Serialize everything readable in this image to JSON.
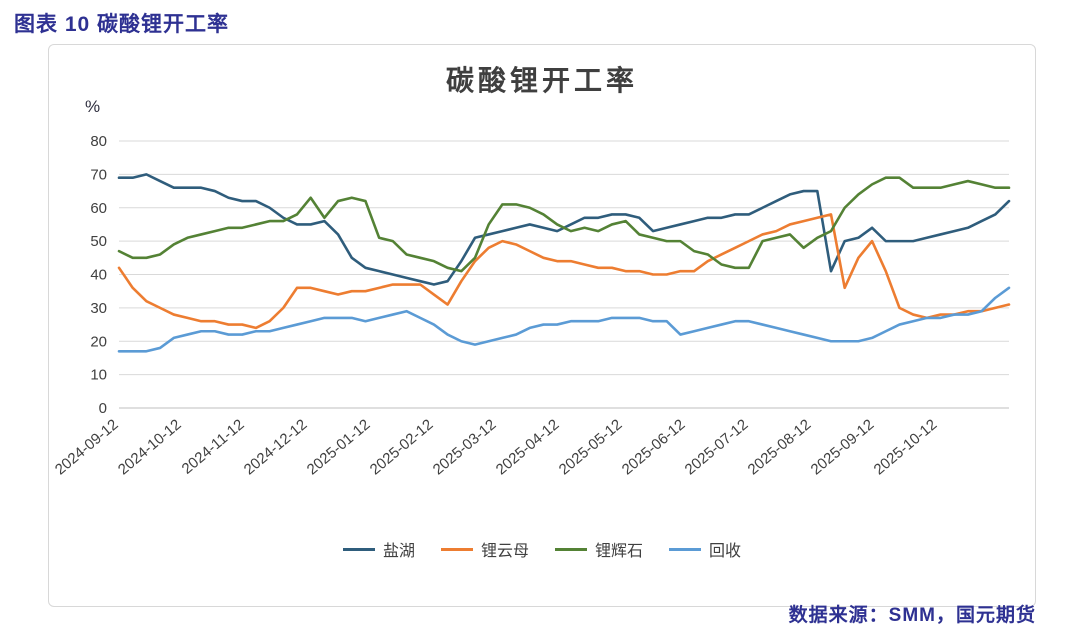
{
  "header": {
    "title": "图表 10 碳酸锂开工率"
  },
  "footer": {
    "source": "数据来源：SMM，国元期货"
  },
  "colors": {
    "accent_blue": "#2E3192",
    "grid": "#D9D9D9",
    "axis": "#BFBFBF",
    "tick_text": "#404040"
  },
  "chart_data": {
    "type": "line",
    "title": "碳酸锂开工率",
    "ylabel": "%",
    "xlabel": "",
    "ylim": [
      0,
      80
    ],
    "ytick_step": 10,
    "grid": "horizontal",
    "legend_position": "bottom",
    "x_tick_labels": [
      "2024-09-12",
      "2024-10-12",
      "2024-11-12",
      "2024-12-12",
      "2025-01-12",
      "2025-02-12",
      "2025-03-12",
      "2025-04-12",
      "2025-05-12",
      "2025-06-12",
      "2025-07-12",
      "2025-08-12",
      "2025-09-12",
      "2025-10-12"
    ],
    "series": [
      {
        "name": "盐湖",
        "color": "#2F5D7C",
        "values": [
          69,
          69,
          70,
          68,
          66,
          66,
          66,
          65,
          63,
          62,
          62,
          60,
          57,
          55,
          55,
          56,
          52,
          45,
          42,
          41,
          40,
          39,
          38,
          37,
          38,
          44,
          51,
          52,
          53,
          54,
          55,
          54,
          53,
          55,
          57,
          57,
          58,
          58,
          57,
          53,
          54,
          55,
          56,
          57,
          57,
          58,
          58,
          60,
          62,
          64,
          65,
          65,
          41,
          50,
          51,
          54,
          50,
          50,
          50,
          51,
          52,
          53,
          54,
          56,
          58,
          62
        ]
      },
      {
        "name": "锂云母",
        "color": "#ED7D31",
        "values": [
          42,
          36,
          32,
          30,
          28,
          27,
          26,
          26,
          25,
          25,
          24,
          26,
          30,
          36,
          36,
          35,
          34,
          35,
          35,
          36,
          37,
          37,
          37,
          34,
          31,
          38,
          44,
          48,
          50,
          49,
          47,
          45,
          44,
          44,
          43,
          42,
          42,
          41,
          41,
          40,
          40,
          41,
          41,
          44,
          46,
          48,
          50,
          52,
          53,
          55,
          56,
          57,
          58,
          36,
          45,
          50,
          41,
          30,
          28,
          27,
          28,
          28,
          29,
          29,
          30,
          31
        ]
      },
      {
        "name": "锂辉石",
        "color": "#548235",
        "values": [
          47,
          45,
          45,
          46,
          49,
          51,
          52,
          53,
          54,
          54,
          55,
          56,
          56,
          58,
          63,
          57,
          62,
          63,
          62,
          51,
          50,
          46,
          45,
          44,
          42,
          41,
          45,
          55,
          61,
          61,
          60,
          58,
          55,
          53,
          54,
          53,
          55,
          56,
          52,
          51,
          50,
          50,
          47,
          46,
          43,
          42,
          42,
          50,
          51,
          52,
          48,
          51,
          53,
          60,
          64,
          67,
          69,
          69,
          66,
          66,
          66,
          67,
          68,
          67,
          66,
          66
        ]
      },
      {
        "name": "回收",
        "color": "#5B9BD5",
        "values": [
          17,
          17,
          17,
          18,
          21,
          22,
          23,
          23,
          22,
          22,
          23,
          23,
          24,
          25,
          26,
          27,
          27,
          27,
          26,
          27,
          28,
          29,
          27,
          25,
          22,
          20,
          19,
          20,
          21,
          22,
          24,
          25,
          25,
          26,
          26,
          26,
          27,
          27,
          27,
          26,
          26,
          22,
          23,
          24,
          25,
          26,
          26,
          25,
          24,
          23,
          22,
          21,
          20,
          20,
          20,
          21,
          23,
          25,
          26,
          27,
          27,
          28,
          28,
          29,
          33,
          36
        ]
      }
    ]
  }
}
